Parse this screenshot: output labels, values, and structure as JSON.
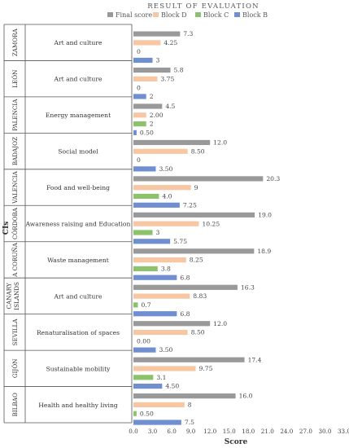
{
  "chart_data": {
    "type": "bar",
    "orientation": "horizontal",
    "title": "RESULT OF EVALUATION",
    "xlabel": "Score",
    "ylabel": "CIs",
    "xlim": [
      0,
      33
    ],
    "xticks": [
      "0.0",
      "3.0",
      "6.0",
      "9.0",
      "12.0",
      "15.0",
      "18.0",
      "21.0",
      "24.0",
      "27.0",
      "30.0",
      "33.0"
    ],
    "legend_position": "top",
    "series": [
      {
        "name": "Final score",
        "color": "#999999"
      },
      {
        "name": "Block D",
        "color": "#f7c6a3"
      },
      {
        "name": "Block C",
        "color": "#8cc26b"
      },
      {
        "name": "Block B",
        "color": "#6f8fd1"
      }
    ],
    "groups": [
      {
        "city": "ZAMORA",
        "category": "Art and culture",
        "values": [
          7.3,
          4.25,
          0,
          3
        ],
        "labels": [
          "7.3",
          "4.25",
          "0",
          "3"
        ]
      },
      {
        "city": "LEÓN",
        "category": "Art and culture",
        "values": [
          5.8,
          3.75,
          0,
          2
        ],
        "labels": [
          "5.8",
          "3.75",
          "0",
          "2"
        ]
      },
      {
        "city": "PALENCIA",
        "category": "Energy management",
        "values": [
          4.5,
          2.0,
          2,
          0.5
        ],
        "labels": [
          "4.5",
          "2.00",
          "2",
          "0.50"
        ]
      },
      {
        "city": "BADAJOZ",
        "category": "Social model",
        "values": [
          12.0,
          8.5,
          0,
          3.5
        ],
        "labels": [
          "12.0",
          "8.50",
          "0",
          "3.50"
        ]
      },
      {
        "city": "VALENCIA",
        "category": "Food and well-being",
        "values": [
          20.3,
          9,
          4.0,
          7.25
        ],
        "labels": [
          "20.3",
          "9",
          "4.0",
          "7.25"
        ]
      },
      {
        "city": "CÓRDOBA",
        "category": "Awareness raising and Education",
        "values": [
          19.0,
          10.25,
          3,
          5.75
        ],
        "labels": [
          "19.0",
          "10.25",
          "3",
          "5.75"
        ]
      },
      {
        "city": "A CORUÑA",
        "category": "Waste management",
        "values": [
          18.9,
          8.25,
          3.8,
          6.8
        ],
        "labels": [
          "18.9",
          "8.25",
          "3.8",
          "6.8"
        ]
      },
      {
        "city": "CANARY ISLANDS",
        "category": "Art and culture",
        "values": [
          16.3,
          8.83,
          0.7,
          6.8
        ],
        "labels": [
          "16.3",
          "8.83",
          "0.7",
          "6.8"
        ]
      },
      {
        "city": "SEVILLA",
        "category": "Renaturalisation of spaces",
        "values": [
          12.0,
          8.5,
          0.0,
          3.5
        ],
        "labels": [
          "12.0",
          "8.50",
          "0.00",
          "3.50"
        ]
      },
      {
        "city": "GIJÓN",
        "category": "Sustainable mobility",
        "values": [
          17.4,
          9.75,
          3.1,
          4.5
        ],
        "labels": [
          "17.4",
          "9.75",
          "3.1",
          "4.50"
        ]
      },
      {
        "city": "BILBAO",
        "category": "Health and healthy living",
        "values": [
          16.0,
          8,
          0.5,
          7.5
        ],
        "labels": [
          "16.0",
          "8",
          "0.50",
          "7.5"
        ]
      }
    ]
  }
}
